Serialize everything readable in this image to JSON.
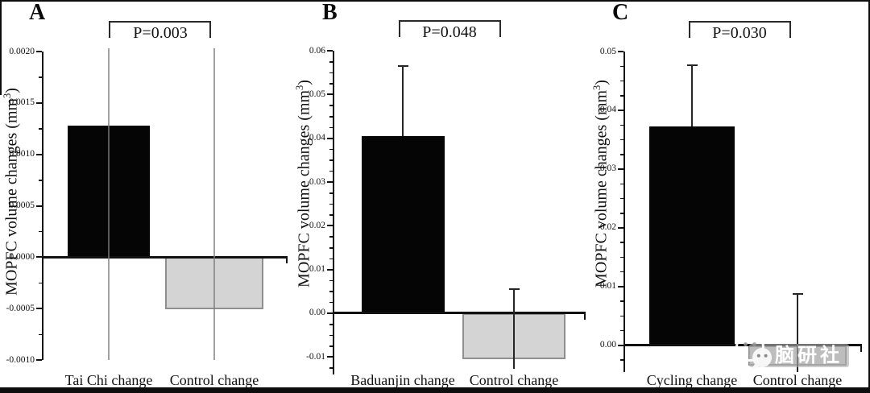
{
  "chart_data": [
    {
      "panel": "A",
      "type": "bar",
      "p_annotation": "P=0.003",
      "ylabel": "MOPFC volume changes (mm³)",
      "ylabel_parts": {
        "prefix": "MOPFC volume changes (mm",
        "sup": "3",
        "suffix": ")"
      },
      "categories": [
        "Tai Chi change",
        "Control change"
      ],
      "values": [
        0.00128,
        -0.00051
      ],
      "bar_styles": [
        "black",
        "light-gray"
      ],
      "error_bars": [
        {
          "high": 0.002,
          "low": -0.001,
          "clipped_to_axis": true
        },
        {
          "high": 0.002,
          "low": -0.001,
          "clipped_to_axis": true
        }
      ],
      "ylim": [
        -0.001,
        0.002
      ],
      "ytick_values": [
        0.002,
        0.0015,
        0.001,
        0.0005,
        0.0,
        -0.0005,
        -0.001
      ],
      "ytick_labels": [
        "0.0020",
        "0.0015",
        "0.0010",
        "0.0005",
        "0.0000",
        "-0.0005",
        "-0.0010"
      ],
      "major_tick_step": 0.0005,
      "grid": false,
      "legend": "none"
    },
    {
      "panel": "B",
      "type": "bar",
      "p_annotation": "P=0.048",
      "ylabel": "MOPFC volume changes (mm³)",
      "ylabel_parts": {
        "prefix": "MOPFC volume changes (mm",
        "sup": "3",
        "suffix": ")"
      },
      "categories": [
        "Baduanjin change",
        "Control change"
      ],
      "values": [
        0.0405,
        -0.0105
      ],
      "bar_styles": [
        "black",
        "light-gray"
      ],
      "error_bars": [
        {
          "high": 0.0565,
          "low": null,
          "clipped_to_axis": false
        },
        {
          "high": 0.0055,
          "low": -0.0128,
          "clipped_to_axis": false
        }
      ],
      "ylim": [
        -0.014,
        0.06
      ],
      "ytick_values": [
        0.06,
        0.05,
        0.04,
        0.03,
        0.02,
        0.01,
        0.0,
        -0.01
      ],
      "ytick_labels": [
        "0.06",
        "0.05",
        "0.04",
        "0.03",
        "0.02",
        "0.01",
        "0.00",
        "-0.01"
      ],
      "major_tick_step": 0.01,
      "grid": false,
      "legend": "none"
    },
    {
      "panel": "C",
      "type": "bar",
      "p_annotation": "P=0.030",
      "ylabel": "MOPFC volume changes (mm³)",
      "ylabel_parts": {
        "prefix": "MOPFC volume changes (mm",
        "sup": "3",
        "suffix": ")"
      },
      "categories": [
        "Cycling change",
        "Control change"
      ],
      "values": [
        0.0373,
        -0.0035
      ],
      "bar_styles": [
        "black",
        "light-gray"
      ],
      "error_bars": [
        {
          "high": 0.0477,
          "low": null,
          "clipped_to_axis": false
        },
        {
          "high": 0.0087,
          "low": -0.0046,
          "clipped_to_axis": false
        }
      ],
      "ylim": [
        -0.0046,
        0.05
      ],
      "ytick_values": [
        0.05,
        0.04,
        0.03,
        0.02,
        0.01,
        0.0
      ],
      "ytick_labels": [
        "0.05",
        "0.04",
        "0.03",
        "0.02",
        "0.01",
        "0.00"
      ],
      "major_tick_step": 0.01,
      "grid": false,
      "legend": "none"
    }
  ],
  "watermark": {
    "text": "脑研社",
    "icon": "wechat-speech-bubbles-icon"
  }
}
